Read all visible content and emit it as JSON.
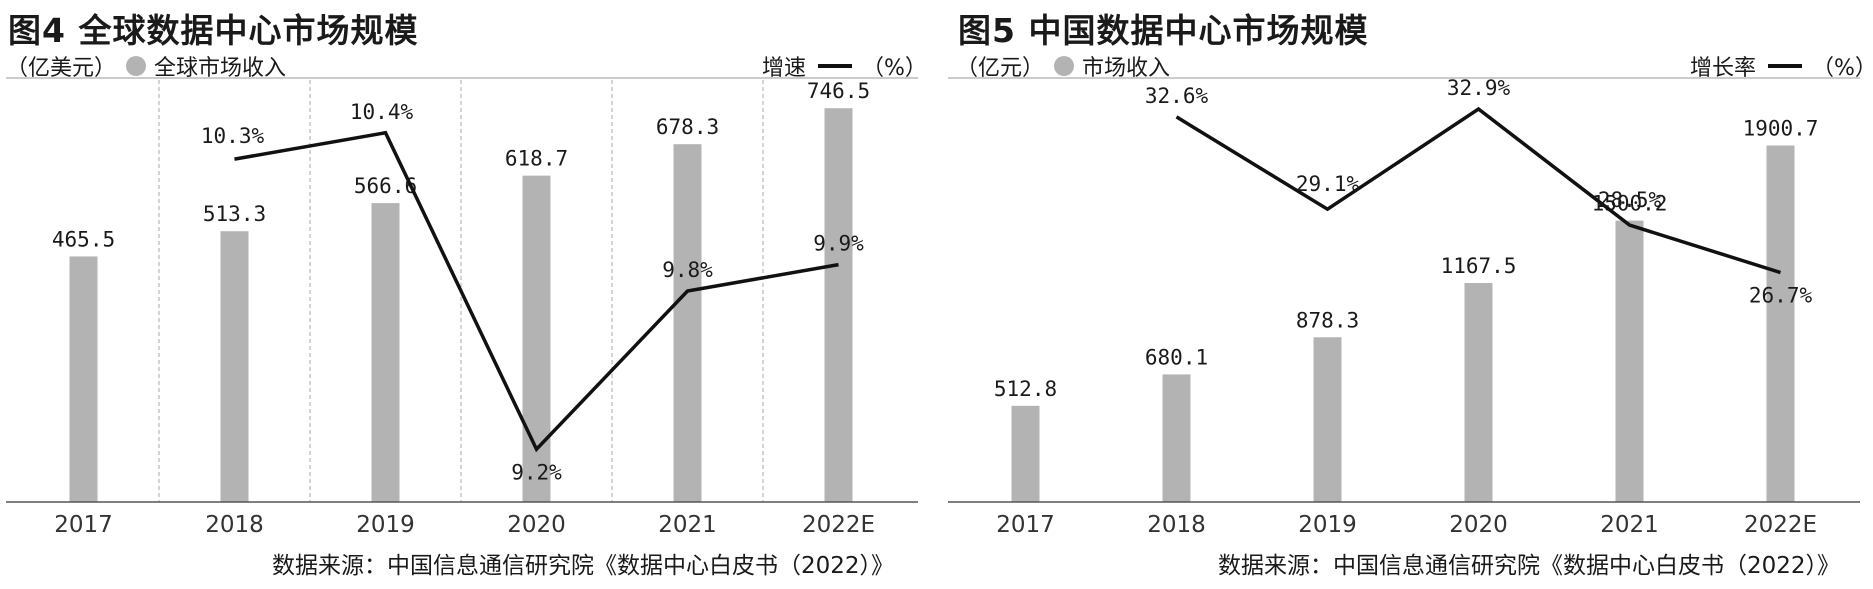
{
  "chart_data": [
    {
      "type": "bar",
      "title": "图4 全球数据中心市场规模",
      "unit": "（亿美元）",
      "bar_series_name": "全球市场收入",
      "line_series_name": "增速",
      "line_unit": "（%）",
      "categories": [
        "2017",
        "2018",
        "2019",
        "2020",
        "2021",
        "2022E"
      ],
      "values": [
        465.5,
        513.3,
        566.6,
        618.7,
        678.3,
        746.5
      ],
      "value_labels": [
        "465.5",
        "513.3",
        "566.6",
        "618.7",
        "678.3",
        "746.5"
      ],
      "growth": [
        null,
        10.3,
        10.4,
        9.2,
        9.8,
        9.9
      ],
      "growth_labels": [
        "",
        "10.3%",
        "10.4%",
        "9.2%",
        "9.8%",
        "9.9%"
      ],
      "ylim": [
        0,
        800
      ],
      "growth_lim": [
        9.0,
        10.6
      ],
      "category_dividers": true,
      "source": "数据来源：中国信息通信研究院《数据中心白皮书（2022）》",
      "colors": {
        "bar": "#b3b3b3",
        "line": "#111111"
      }
    },
    {
      "type": "bar",
      "title": "图5 中国数据中心市场规模",
      "unit": "（亿元）",
      "bar_series_name": "市场收入",
      "line_series_name": "增长率",
      "line_unit": "（%）",
      "categories": [
        "2017",
        "2018",
        "2019",
        "2020",
        "2021",
        "2022E"
      ],
      "values": [
        512.8,
        680.1,
        878.3,
        1167.5,
        1500.2,
        1900.7
      ],
      "value_labels": [
        "512.8",
        "680.1",
        "878.3",
        "1167.5",
        "1500.2",
        "1900.7"
      ],
      "growth": [
        null,
        32.6,
        29.1,
        32.9,
        28.5,
        26.7
      ],
      "growth_labels": [
        "",
        "32.6%",
        "29.1%",
        "32.9%",
        "28.5%",
        "26.7%"
      ],
      "ylim": [
        0,
        2250
      ],
      "growth_lim": [
        18,
        34
      ],
      "category_dividers": false,
      "source": "数据来源：中国信息通信研究院《数据中心白皮书（2022）》",
      "colors": {
        "bar": "#b3b3b3",
        "line": "#111111"
      }
    }
  ]
}
